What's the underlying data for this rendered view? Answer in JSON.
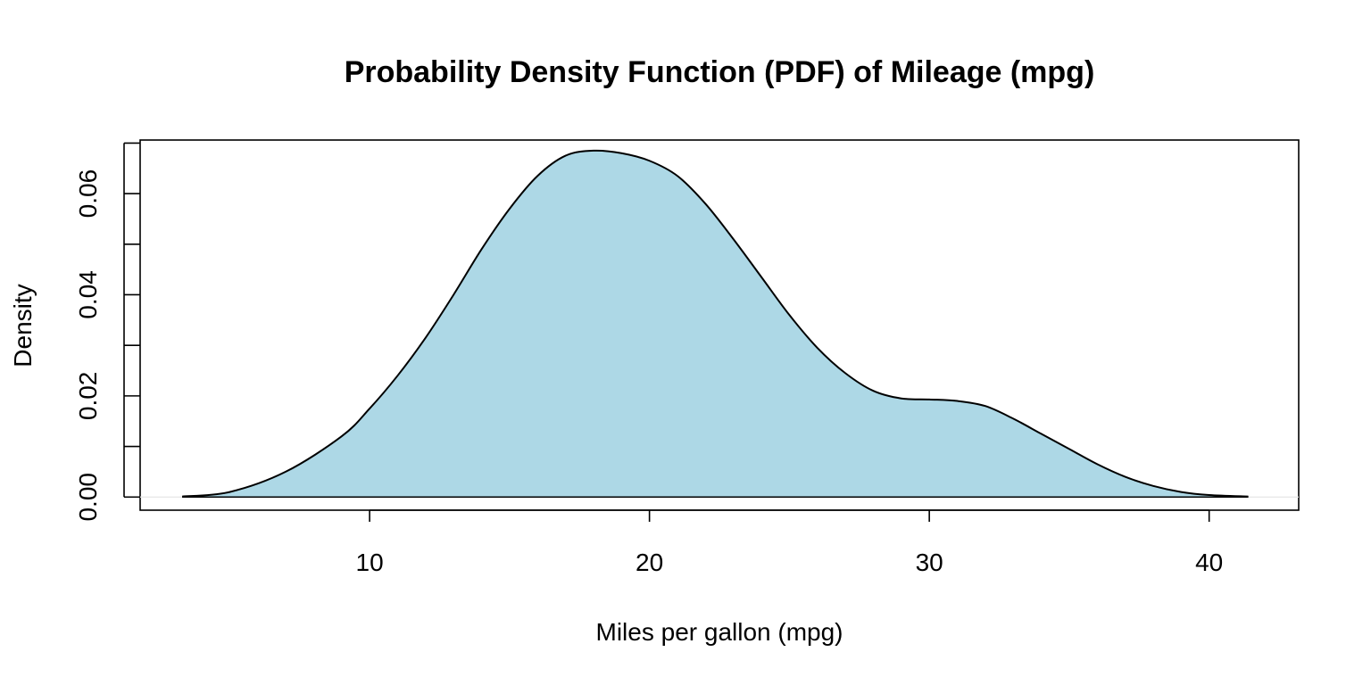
{
  "chart_data": {
    "type": "area",
    "title": "Probability Density Function (PDF) of Mileage (mpg)",
    "xlabel": "Miles per gallon (mpg)",
    "ylabel": "Density",
    "xlim": [
      1.8,
      43.2
    ],
    "ylim": [
      -0.0026,
      0.0706
    ],
    "x_ticks": [
      10,
      20,
      30,
      40
    ],
    "x_tick_labels": [
      "10",
      "20",
      "30",
      "40"
    ],
    "y_ticks": [
      0.0,
      0.01,
      0.02,
      0.03,
      0.04,
      0.05,
      0.06,
      0.07
    ],
    "y_tick_labels": [
      "0.00",
      "",
      "0.02",
      "",
      "0.04",
      "",
      "0.06",
      ""
    ],
    "grid": false,
    "legend": "none",
    "fill_color": "#ADD8E6",
    "line_color": "#000000",
    "series": [
      {
        "x": [
          3.3,
          5,
          7,
          9,
          10,
          11,
          12,
          13,
          14,
          15,
          16,
          17,
          18,
          19,
          20,
          21,
          22,
          23,
          24,
          25,
          26,
          27,
          28,
          29,
          30,
          31,
          32,
          33,
          34,
          35,
          36,
          37,
          38,
          39,
          40,
          41.4
        ],
        "y": [
          0.0001,
          0.001,
          0.005,
          0.012,
          0.0175,
          0.024,
          0.0315,
          0.04,
          0.049,
          0.057,
          0.0635,
          0.0675,
          0.0685,
          0.068,
          0.0665,
          0.0635,
          0.058,
          0.051,
          0.0435,
          0.036,
          0.0295,
          0.0245,
          0.021,
          0.0195,
          0.0193,
          0.019,
          0.018,
          0.0155,
          0.0125,
          0.0095,
          0.0065,
          0.004,
          0.0022,
          0.001,
          0.0004,
          0.0001
        ]
      }
    ]
  }
}
